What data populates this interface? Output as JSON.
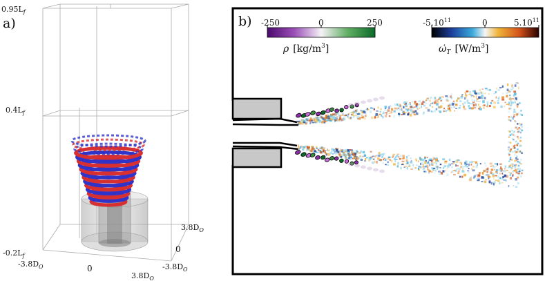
{
  "panel_a": {
    "label": "a)",
    "z_ticks": {
      "top": "0.95L",
      "top_sub": "f",
      "mid": "0.4L",
      "mid_sub": "f",
      "bottom": "-0.2L",
      "bottom_sub": "f"
    },
    "x_ticks": {
      "left": "-3.8D",
      "left_sub": "O",
      "center": "0"
    },
    "y_ticks": {
      "back": "3.8D",
      "back_sub": "O",
      "center": "0",
      "front": "-3.8D",
      "front_sub": "O"
    },
    "bottom_right_tick": {
      "value": "3.8D",
      "sub": "O"
    }
  },
  "panel_b": {
    "label": "b)",
    "colorbar_rho": {
      "min": "-250",
      "mid": "0",
      "max": "250",
      "label_symbol": "ρ",
      "label_unit": "[kg/m",
      "label_unit_sup": "3",
      "label_unit_close": "]",
      "colors": [
        "#4b0a6e",
        "#9b4fb8",
        "#f6f2f7",
        "#5fae62",
        "#0c6a2a"
      ]
    },
    "colorbar_omega": {
      "min": "-5.10",
      "min_sup": "11",
      "mid": "0",
      "max": "5.10",
      "max_sup": "11",
      "label_symbol": "ω̇",
      "label_sub": "T",
      "label_unit": "[W/m",
      "label_unit_sup": "3",
      "label_unit_close": "]",
      "colors": [
        "#000000",
        "#1b3d9a",
        "#3aa9dc",
        "#f5f5f5",
        "#f0b43a",
        "#d2521a",
        "#2a0000"
      ]
    }
  },
  "colors": {
    "red_vortex": "#d83030",
    "blue_vortex": "#2f33c9",
    "cylinder": "#bfbfbf",
    "frame": "#999999"
  }
}
